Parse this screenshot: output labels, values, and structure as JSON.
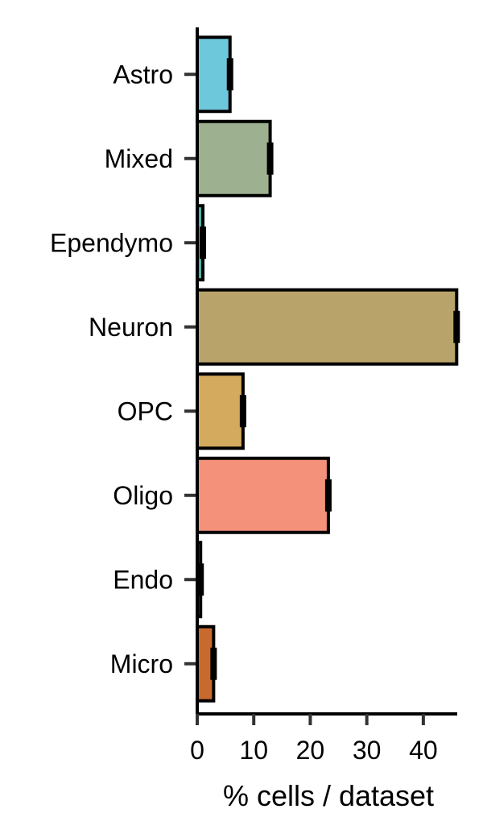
{
  "chart_data": {
    "type": "bar",
    "orientation": "horizontal",
    "xlabel": "% cells / dataset",
    "ylabel": "",
    "xlim": [
      0,
      46
    ],
    "xticks": [
      0,
      10,
      20,
      30,
      40
    ],
    "grid": false,
    "categories": [
      "Astro",
      "Mixed",
      "Ependymo",
      "Neuron",
      "OPC",
      "Oligo",
      "Endo",
      "Micro"
    ],
    "values": [
      5.8,
      12.9,
      1.0,
      45.9,
      8.1,
      23.2,
      0.6,
      2.9
    ],
    "errors": [
      0.4,
      0.4,
      0.2,
      0.3,
      0.4,
      0.5,
      0.2,
      0.3
    ],
    "colors": [
      "#6EC8DC",
      "#9DB090",
      "#4DB3A9",
      "#B8A36A",
      "#D4AA5E",
      "#F4917B",
      "#8AA0C8",
      "#C8692E"
    ]
  }
}
